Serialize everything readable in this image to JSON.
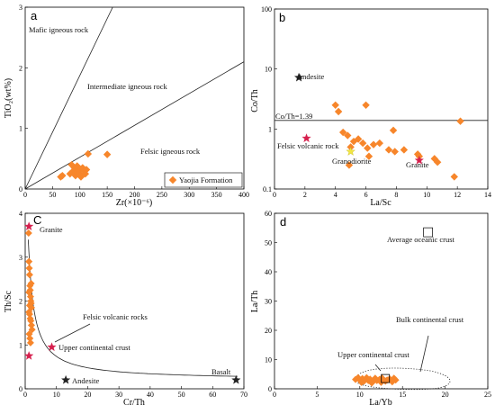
{
  "colors": {
    "point": "#f7862b",
    "star_black": "#222222",
    "star_red": "#d6204e",
    "star_yellow": "#f2e642"
  },
  "chart_data": [
    {
      "panel": "a",
      "type": "scatter",
      "xlabel": "Zr(×10⁻⁶)",
      "ylabel": "TiO₂(wt%)",
      "xlim": [
        0,
        400
      ],
      "ylim": [
        0,
        3
      ],
      "xticks": [
        0,
        50,
        100,
        150,
        200,
        250,
        300,
        350,
        400
      ],
      "yticks": [
        0,
        1,
        2,
        3
      ],
      "regions": [
        "Mafic igneous rock",
        "Intermediate igneous rock",
        "Felsic igneous rock"
      ],
      "legend": {
        "label": "Yaojia Formation",
        "position": "bottom-right"
      },
      "series": [
        {
          "name": "Yaojia Formation",
          "x": [
            65,
            68,
            82,
            88,
            90,
            92,
            95,
            98,
            100,
            102,
            105,
            108,
            110,
            112,
            115,
            150,
            85,
            95,
            100
          ],
          "y": [
            0.2,
            0.22,
            0.25,
            0.3,
            0.35,
            0.22,
            0.28,
            0.3,
            0.25,
            0.2,
            0.35,
            0.3,
            0.25,
            0.32,
            0.58,
            0.57,
            0.4,
            0.38,
            0.22
          ]
        }
      ]
    },
    {
      "panel": "b",
      "type": "scatter",
      "xlabel": "La/Sc",
      "ylabel": "Co/Th",
      "xlim": [
        0,
        14
      ],
      "ylim": [
        0.1,
        100
      ],
      "yscale": "log",
      "xticks": [
        0,
        2,
        4,
        6,
        8,
        10,
        12,
        14
      ],
      "yticks": [
        0.1,
        1,
        10,
        100
      ],
      "hline": {
        "value": 1.39,
        "label": "Co/Th=1.39"
      },
      "references": [
        {
          "label": "Andesite",
          "x": 1.6,
          "y": 7.2,
          "color": "star_black"
        },
        {
          "label": "Felsic volcanic rock",
          "x": 2.1,
          "y": 0.7,
          "color": "star_red"
        },
        {
          "label": "Granodiorite",
          "x": 5.0,
          "y": 0.42,
          "color": "star_yellow"
        },
        {
          "label": "Granite",
          "x": 9.5,
          "y": 0.3,
          "color": "star_red"
        }
      ],
      "series": [
        {
          "x": [
            4.0,
            4.2,
            4.5,
            4.8,
            4.9,
            5.2,
            5.5,
            5.8,
            6.0,
            6.2,
            6.5,
            6.9,
            7.5,
            7.8,
            7.9,
            8.5,
            9.5,
            10.5,
            10.7,
            11.8,
            12.2,
            5.0,
            6.1,
            9.4
          ],
          "y": [
            2.5,
            1.95,
            0.88,
            0.78,
            0.25,
            0.62,
            0.68,
            0.58,
            2.5,
            0.35,
            0.55,
            0.58,
            0.45,
            0.95,
            0.42,
            0.45,
            0.35,
            0.32,
            0.28,
            0.16,
            1.35,
            0.5,
            0.48,
            0.38
          ]
        }
      ]
    },
    {
      "panel": "C",
      "type": "scatter",
      "xlabel": "Cr/Th",
      "ylabel": "Th/Sc",
      "xlim": [
        0,
        70
      ],
      "ylim": [
        0,
        4
      ],
      "xticks": [
        0,
        10,
        20,
        30,
        40,
        50,
        60,
        70
      ],
      "yticks": [
        0,
        1,
        2,
        3,
        4
      ],
      "references": [
        {
          "label": "Granite",
          "x": 1.2,
          "y": 3.7,
          "color": "star_red"
        },
        {
          "label": "Felsic volcanic rocks",
          "x": 1.2,
          "y": 0.75,
          "color": "star_red"
        },
        {
          "label": "Upper continental crust",
          "x": 8.5,
          "y": 0.95,
          "color": "star_red"
        },
        {
          "label": "Andesite",
          "x": 13,
          "y": 0.2,
          "color": "star_black"
        },
        {
          "label": "Basalt",
          "x": 67.5,
          "y": 0.2,
          "color": "star_black"
        }
      ],
      "series": [
        {
          "x": [
            1.1,
            1.2,
            1.3,
            1.4,
            1.5,
            1.6,
            1.7,
            1.8,
            1.9,
            2.0,
            1.2,
            1.4,
            1.6,
            1.8,
            2.0,
            2.2,
            1.3,
            1.5,
            1.7,
            1.9,
            1.2,
            1.4
          ],
          "y": [
            3.55,
            2.9,
            2.75,
            2.6,
            2.35,
            2.25,
            2.1,
            2.0,
            1.95,
            1.85,
            1.75,
            1.7,
            1.6,
            1.55,
            1.45,
            1.35,
            1.25,
            1.15,
            1.05,
            2.4,
            2.2,
            1.9
          ]
        }
      ]
    },
    {
      "panel": "d",
      "type": "scatter",
      "xlabel": "La/Yb",
      "ylabel": "La/Th",
      "xlim": [
        0,
        25
      ],
      "ylim": [
        0,
        60
      ],
      "xticks": [
        0,
        5,
        10,
        15,
        20,
        25
      ],
      "yticks": [
        0,
        10,
        20,
        30,
        40,
        50,
        60
      ],
      "references": [
        {
          "label": "Average oceanic crust",
          "x": 18,
          "y": 53.5,
          "shape": "square"
        },
        {
          "label": "Upper continental crust",
          "x": 13,
          "y": 3.5,
          "shape": "square"
        },
        {
          "label": "Bulk continental crust",
          "shape": "dotted-ellipse"
        }
      ],
      "series": [
        {
          "x": [
            9.5,
            9.8,
            10.0,
            10.3,
            10.5,
            10.8,
            11.0,
            11.2,
            11.5,
            11.8,
            12.0,
            12.3,
            12.6,
            13.0,
            13.2,
            13.5,
            14.0,
            14.2,
            10.2,
            11.4,
            12.5,
            13.8
          ],
          "y": [
            3.2,
            3.8,
            3.0,
            3.5,
            2.6,
            3.8,
            2.8,
            3.3,
            2.4,
            3.6,
            2.8,
            3.2,
            3.7,
            2.6,
            3.0,
            3.4,
            3.6,
            3.0,
            2.2,
            2.0,
            2.2,
            2.4
          ]
        }
      ]
    }
  ]
}
